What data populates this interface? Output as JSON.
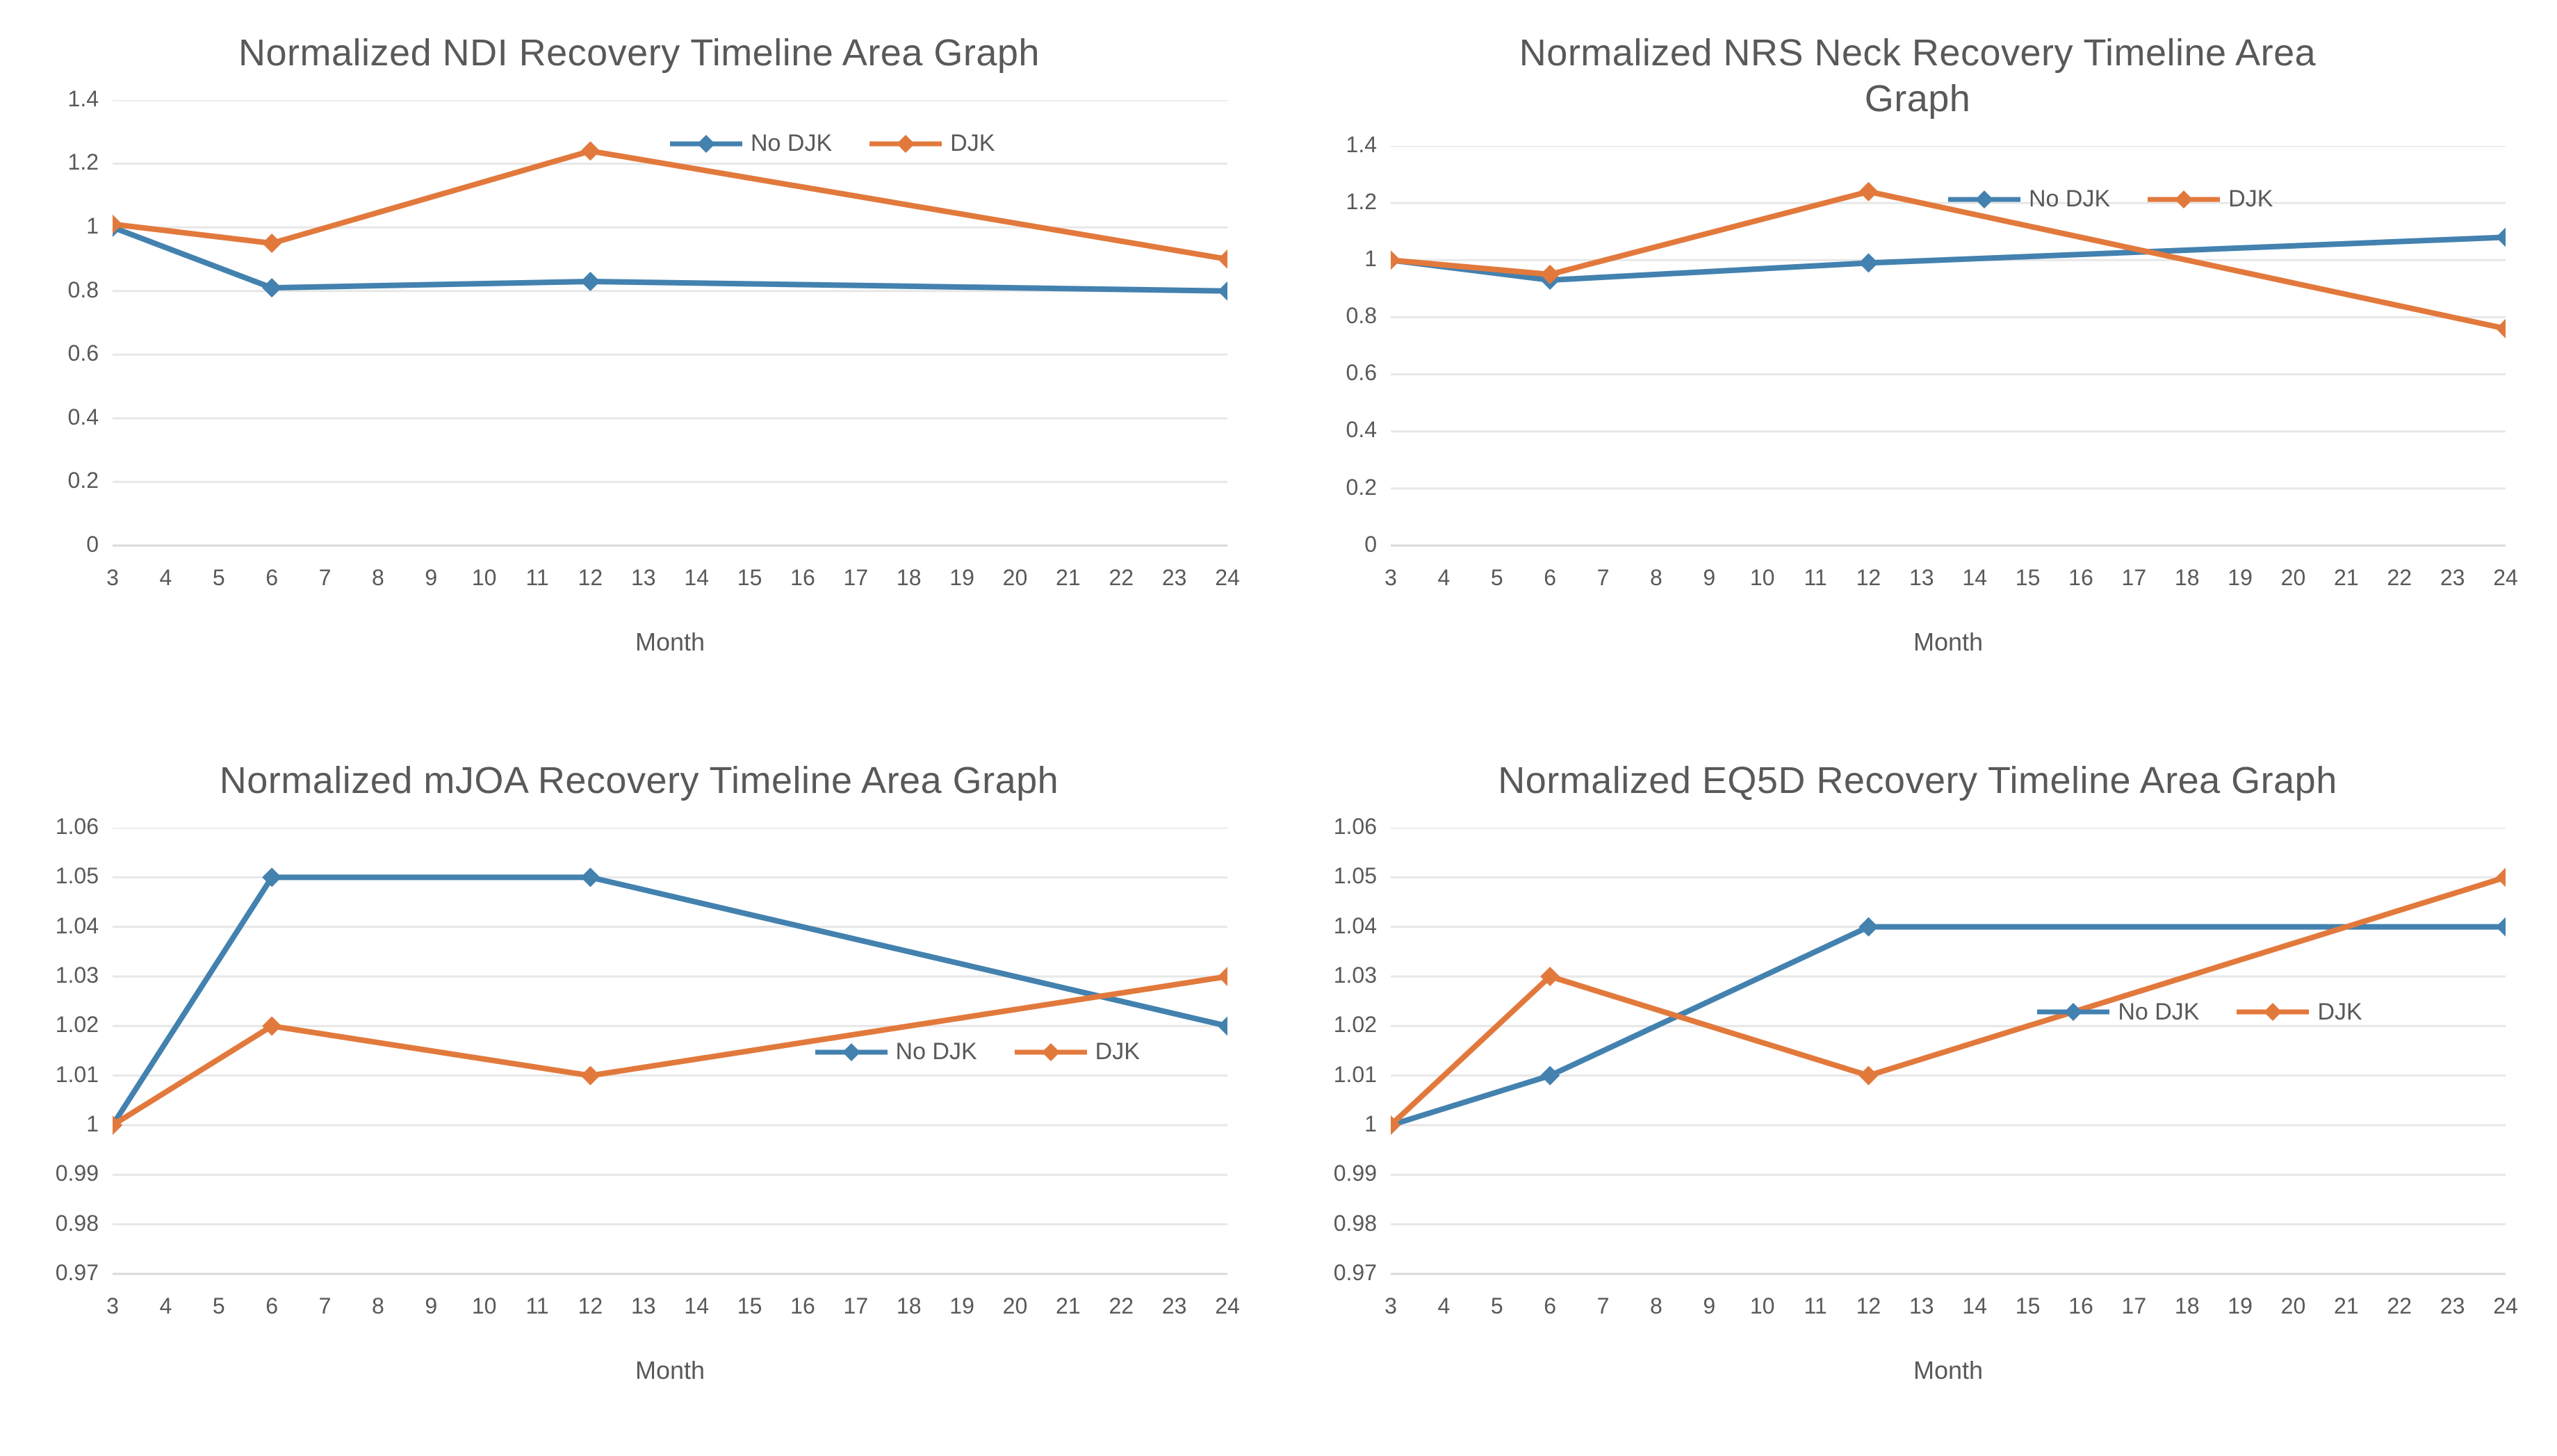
{
  "page": {
    "background": "#ffffff"
  },
  "colors": {
    "no_djk": "#4381AF",
    "djk": "#E2793C",
    "grid": "#E7E7E7",
    "axis_line": "#D9D9D9",
    "text": "#595959"
  },
  "chart_data": [
    {
      "type": "line",
      "title": "Normalized NDI Recovery Timeline Area Graph",
      "xlabel": "Month",
      "x": [
        3,
        6,
        12,
        24
      ],
      "x_tick_labels": [
        "3",
        "4",
        "5",
        "6",
        "7",
        "8",
        "9",
        "10",
        "11",
        "12",
        "13",
        "14",
        "15",
        "16",
        "17",
        "18",
        "19",
        "20",
        "21",
        "22",
        "23",
        "24"
      ],
      "xlim": [
        3,
        24
      ],
      "ylim": [
        0,
        1.4
      ],
      "y_tick_labels": [
        "0",
        "0.2",
        "0.4",
        "0.6",
        "0.8",
        "1",
        "1.2",
        "1.4"
      ],
      "grid": true,
      "legend_position": "inside top-right",
      "legend_pos": {
        "x": 0.5,
        "y": 0.095
      },
      "series": [
        {
          "name": "No DJK",
          "color": "#4381AF",
          "values": [
            1.0,
            0.81,
            0.83,
            0.8
          ]
        },
        {
          "name": "DJK",
          "color": "#E2793C",
          "values": [
            1.01,
            0.95,
            1.24,
            0.9
          ]
        }
      ]
    },
    {
      "type": "line",
      "title": "Normalized NRS Neck Recovery Timeline Area Graph",
      "xlabel": "Month",
      "x": [
        3,
        6,
        12,
        24
      ],
      "x_tick_labels": [
        "3",
        "4",
        "5",
        "6",
        "7",
        "8",
        "9",
        "10",
        "11",
        "12",
        "13",
        "14",
        "15",
        "16",
        "17",
        "18",
        "19",
        "20",
        "21",
        "22",
        "23",
        "24"
      ],
      "xlim": [
        3,
        24
      ],
      "ylim": [
        0,
        1.4
      ],
      "y_tick_labels": [
        "0",
        "0.2",
        "0.4",
        "0.6",
        "0.8",
        "1",
        "1.2",
        "1.4"
      ],
      "grid": true,
      "legend_position": "inside top-right",
      "legend_pos": {
        "x": 0.5,
        "y": 0.13
      },
      "series": [
        {
          "name": "No DJK",
          "color": "#4381AF",
          "values": [
            1.0,
            0.93,
            0.99,
            1.08
          ]
        },
        {
          "name": "DJK",
          "color": "#E2793C",
          "values": [
            1.0,
            0.95,
            1.24,
            0.76
          ]
        }
      ]
    },
    {
      "type": "line",
      "title": "Normalized mJOA Recovery Timeline Area Graph",
      "xlabel": "Month",
      "x": [
        3,
        6,
        12,
        24
      ],
      "x_tick_labels": [
        "3",
        "4",
        "5",
        "6",
        "7",
        "8",
        "9",
        "10",
        "11",
        "12",
        "13",
        "14",
        "15",
        "16",
        "17",
        "18",
        "19",
        "20",
        "21",
        "22",
        "23",
        "24"
      ],
      "xlim": [
        3,
        24
      ],
      "ylim": [
        0.97,
        1.06
      ],
      "y_tick_labels": [
        "0.97",
        "0.98",
        "0.99",
        "1",
        "1.01",
        "1.02",
        "1.03",
        "1.04",
        "1.05",
        "1.06"
      ],
      "grid": true,
      "legend_position": "inside middle-right",
      "legend_pos": {
        "x": 0.63,
        "y": 0.5
      },
      "series": [
        {
          "name": "No DJK",
          "color": "#4381AF",
          "values": [
            1.0,
            1.05,
            1.05,
            1.02
          ]
        },
        {
          "name": "DJK",
          "color": "#E2793C",
          "values": [
            1.0,
            1.02,
            1.01,
            1.03
          ]
        }
      ]
    },
    {
      "type": "line",
      "title": "Normalized EQ5D Recovery Timeline Area Graph",
      "xlabel": "Month",
      "x": [
        3,
        6,
        12,
        24
      ],
      "x_tick_labels": [
        "3",
        "4",
        "5",
        "6",
        "7",
        "8",
        "9",
        "10",
        "11",
        "12",
        "13",
        "14",
        "15",
        "16",
        "17",
        "18",
        "19",
        "20",
        "21",
        "22",
        "23",
        "24"
      ],
      "xlim": [
        3,
        24
      ],
      "ylim": [
        0.97,
        1.06
      ],
      "y_tick_labels": [
        "0.97",
        "0.98",
        "0.99",
        "1",
        "1.01",
        "1.02",
        "1.03",
        "1.04",
        "1.05",
        "1.06"
      ],
      "grid": true,
      "legend_position": "inside middle-right",
      "legend_pos": {
        "x": 0.58,
        "y": 0.41
      },
      "series": [
        {
          "name": "No DJK",
          "color": "#4381AF",
          "values": [
            1.0,
            1.01,
            1.04,
            1.04
          ]
        },
        {
          "name": "DJK",
          "color": "#E2793C",
          "values": [
            1.0,
            1.03,
            1.01,
            1.05
          ]
        }
      ]
    }
  ]
}
